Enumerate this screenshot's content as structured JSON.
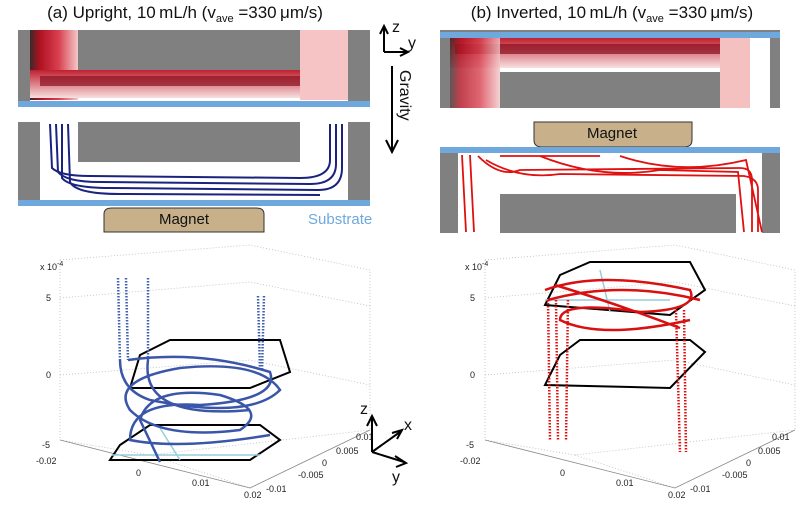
{
  "panels": [
    {
      "title": {
        "prefix": "(a) Upright, 10 mL/h (v",
        "subscript": "ave",
        "suffix": " =330 μm/s)"
      },
      "magnet": "Magnet",
      "substrate": "Substrate",
      "plot": {
        "scale_label": "x 10",
        "scale_exponent": "-4",
        "z_ticks": [
          "5",
          "0",
          "-5"
        ],
        "x_ticks": [
          "-0.02",
          "0",
          "0.01",
          "0.02"
        ],
        "y_ticks": [
          "0.01",
          "0.005",
          "0",
          "-0.005",
          "-0.01"
        ]
      }
    },
    {
      "title": {
        "prefix": "(b) Inverted, 10 mL/h (v",
        "subscript": "ave",
        "suffix": " =330 μm/s)"
      },
      "magnet": "Magnet",
      "plot": {
        "scale_label": "x 10",
        "scale_exponent": "-4",
        "z_ticks": [
          "5",
          "0",
          "-5"
        ],
        "x_ticks": [
          "-0.02",
          "0",
          "0.01",
          "0.02"
        ],
        "y_ticks": [
          "0.01",
          "0.005",
          "0",
          "-0.005",
          "-0.01"
        ]
      }
    }
  ],
  "orientation_top": {
    "z": "z",
    "y": "y"
  },
  "gravity": "Gravity",
  "orientation_bottom": {
    "z": "z",
    "x": "x",
    "y": "y"
  }
}
